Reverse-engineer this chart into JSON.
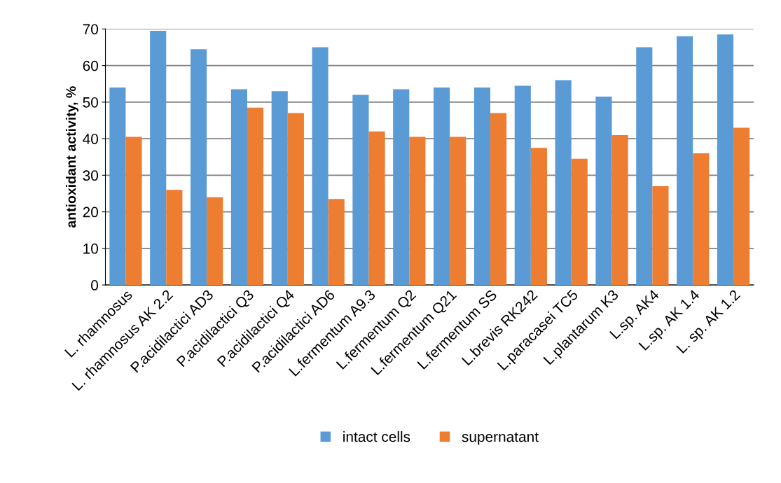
{
  "chart_data": {
    "type": "bar",
    "ylabel": "antioxidant activity, %",
    "categories": [
      "L. rhamnosus",
      "L. rhamnosus AK 2.2",
      "P.acidilactici AD3",
      "P.acidilactici Q3",
      "P.acidilactici Q4",
      "P.acidilactici AD6",
      "L.fermentum A9.3",
      "L.fermentum Q2",
      "L.fermentum Q21",
      "L.fermentum SS",
      "L.brevis RK242",
      "L.paracasei TC5",
      "L.plantarum K3",
      "L.sp. AK4",
      "L.sp. AK 1.4",
      "L. sp. AK 1.2"
    ],
    "series": [
      {
        "name": "intact cells",
        "color": "#5b9bd5",
        "values": [
          54,
          69.5,
          64.5,
          53.5,
          53,
          65,
          52,
          53.5,
          54,
          54,
          54.5,
          56,
          51.5,
          65,
          68,
          68.5
        ]
      },
      {
        "name": "supernatant",
        "color": "#ed7d31",
        "values": [
          40.5,
          26,
          24,
          48.5,
          47,
          23.5,
          42,
          40.5,
          40.5,
          47,
          37.5,
          34.5,
          41,
          27,
          36,
          43
        ]
      }
    ],
    "ylim": [
      0,
      70
    ],
    "yticks": [
      0,
      10,
      20,
      30,
      40,
      50,
      60,
      70
    ],
    "grid": "y",
    "legend": "bottom"
  }
}
